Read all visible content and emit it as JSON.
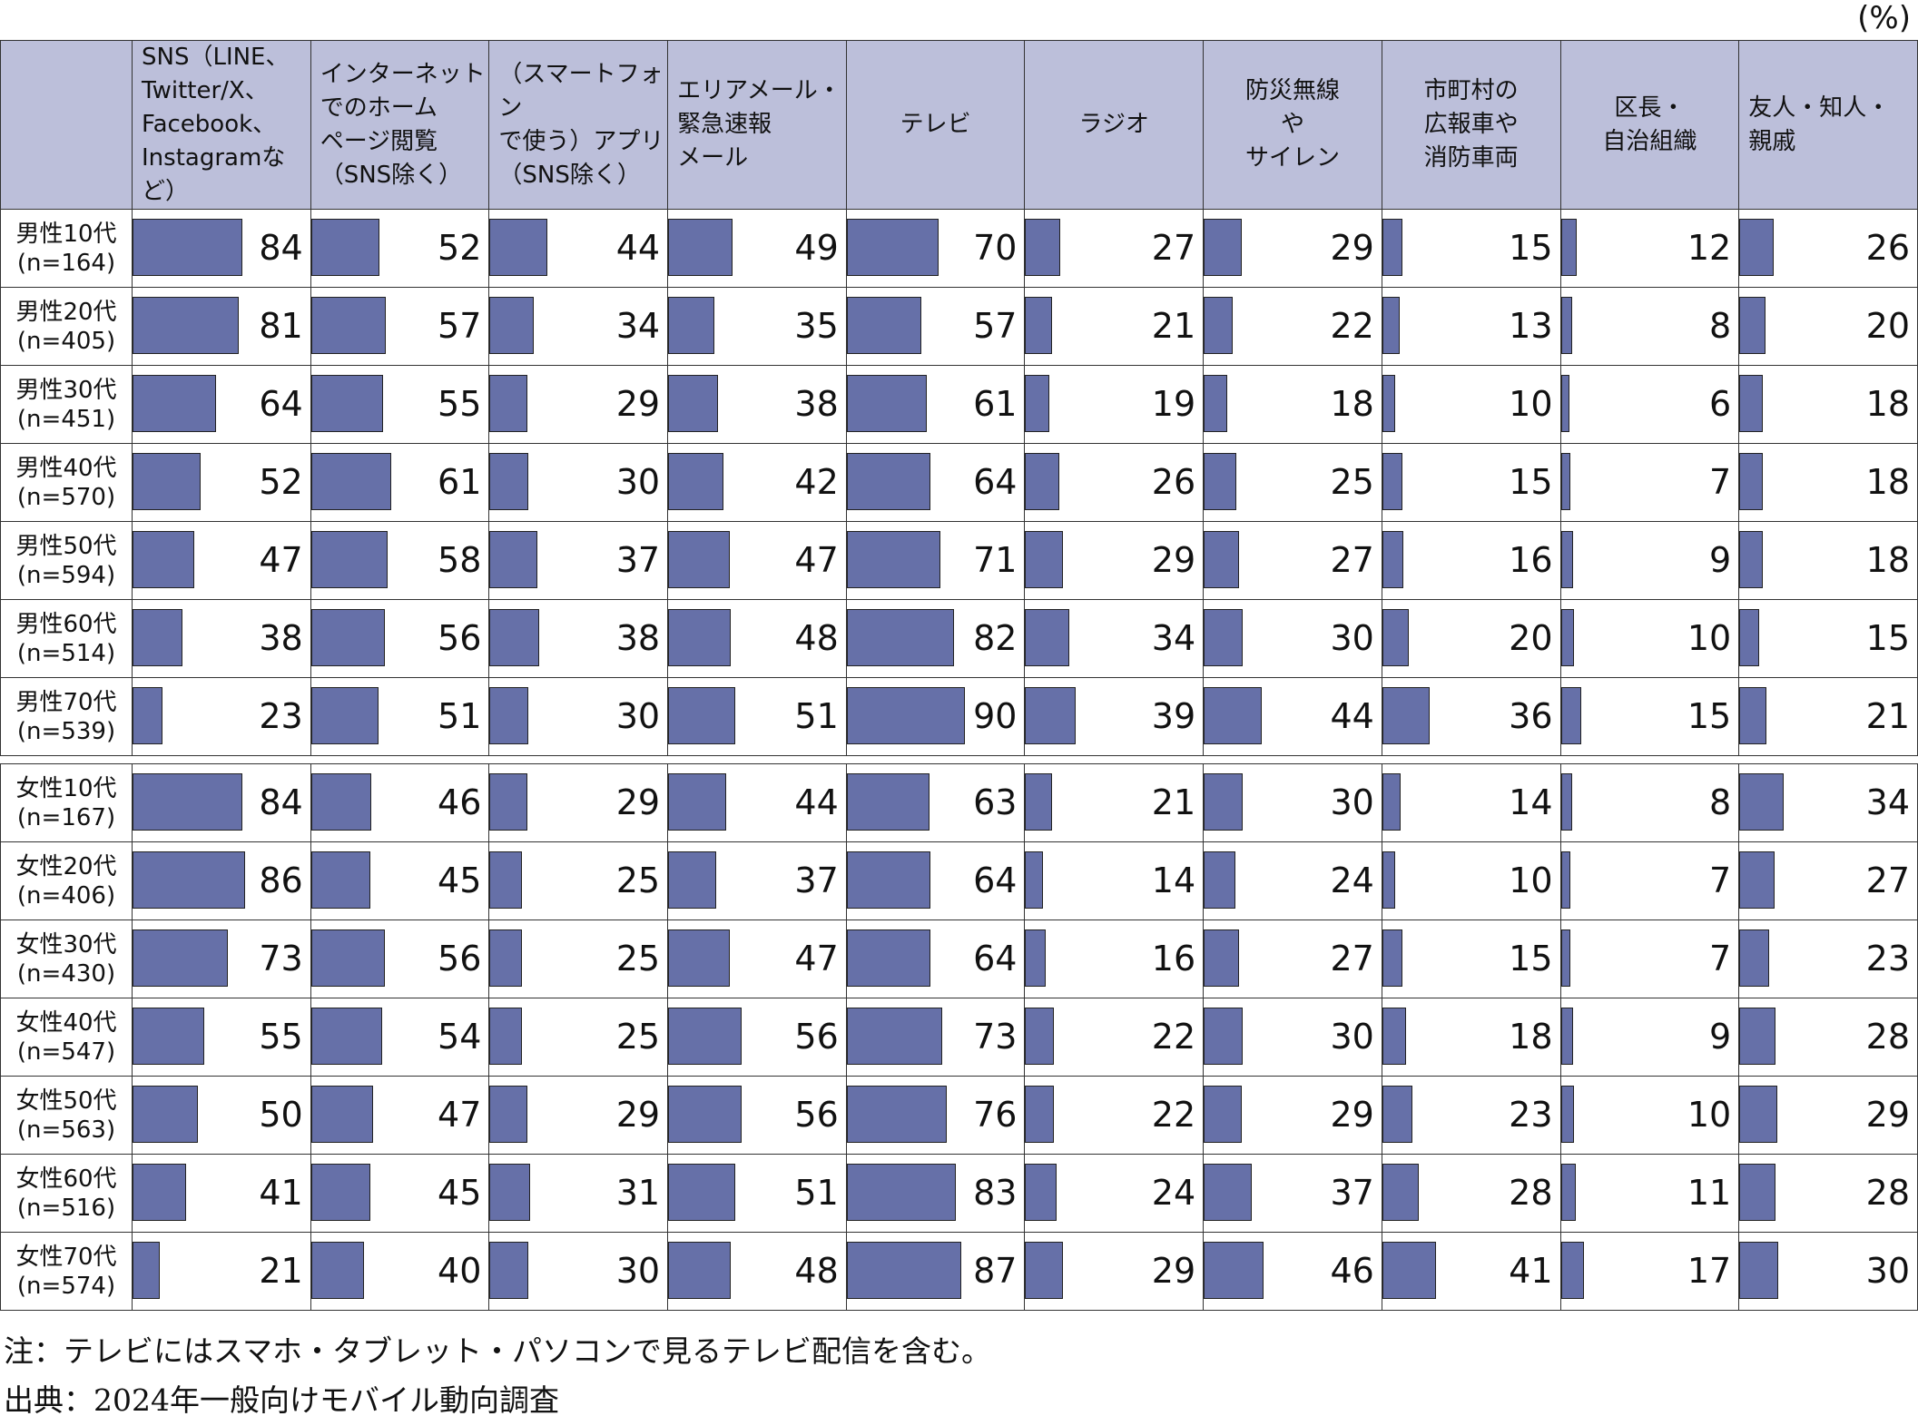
{
  "unit_label": "(%)",
  "chart_data": {
    "type": "table",
    "columns": [
      "SNS（LINE、\nTwitter/X、\nFacebook、\nInstagramなど）",
      "インターネット\nでのホーム\nページ閲覧\n（SNS除く）",
      "（スマートフォン\nで使う）アプリ\n（SNS除く）",
      "エリアメール・\n緊急速報\nメール",
      "テレビ",
      "ラジオ",
      "防災無線\nや\nサイレン",
      "市町村の\n広報車や\n消防車両",
      "区長・\n自治組織",
      "友人・知人・\n親戚"
    ],
    "centered_columns": [
      4,
      5,
      6,
      7,
      8
    ],
    "groups": [
      {
        "rows": [
          {
            "label": "男性10代",
            "n": "(n=164)",
            "values": [
              84,
              52,
              44,
              49,
              70,
              27,
              29,
              15,
              12,
              26
            ]
          },
          {
            "label": "男性20代",
            "n": "(n=405)",
            "values": [
              81,
              57,
              34,
              35,
              57,
              21,
              22,
              13,
              8,
              20
            ]
          },
          {
            "label": "男性30代",
            "n": "(n=451)",
            "values": [
              64,
              55,
              29,
              38,
              61,
              19,
              18,
              10,
              6,
              18
            ]
          },
          {
            "label": "男性40代",
            "n": "(n=570)",
            "values": [
              52,
              61,
              30,
              42,
              64,
              26,
              25,
              15,
              7,
              18
            ]
          },
          {
            "label": "男性50代",
            "n": "(n=594)",
            "values": [
              47,
              58,
              37,
              47,
              71,
              29,
              27,
              16,
              9,
              18
            ]
          },
          {
            "label": "男性60代",
            "n": "(n=514)",
            "values": [
              38,
              56,
              38,
              48,
              82,
              34,
              30,
              20,
              10,
              15
            ]
          },
          {
            "label": "男性70代",
            "n": "(n=539)",
            "values": [
              23,
              51,
              30,
              51,
              90,
              39,
              44,
              36,
              15,
              21
            ]
          }
        ]
      },
      {
        "rows": [
          {
            "label": "女性10代",
            "n": "(n=167)",
            "values": [
              84,
              46,
              29,
              44,
              63,
              21,
              30,
              14,
              8,
              34
            ]
          },
          {
            "label": "女性20代",
            "n": "(n=406)",
            "values": [
              86,
              45,
              25,
              37,
              64,
              14,
              24,
              10,
              7,
              27
            ]
          },
          {
            "label": "女性30代",
            "n": "(n=430)",
            "values": [
              73,
              56,
              25,
              47,
              64,
              16,
              27,
              15,
              7,
              23
            ]
          },
          {
            "label": "女性40代",
            "n": "(n=547)",
            "values": [
              55,
              54,
              25,
              56,
              73,
              22,
              30,
              18,
              9,
              28
            ]
          },
          {
            "label": "女性50代",
            "n": "(n=563)",
            "values": [
              50,
              47,
              29,
              56,
              76,
              22,
              29,
              23,
              10,
              29
            ]
          },
          {
            "label": "女性60代",
            "n": "(n=516)",
            "values": [
              41,
              45,
              31,
              51,
              83,
              24,
              37,
              28,
              11,
              28
            ]
          },
          {
            "label": "女性70代",
            "n": "(n=574)",
            "values": [
              21,
              40,
              30,
              48,
              87,
              29,
              46,
              41,
              17,
              30
            ]
          }
        ]
      }
    ],
    "bar_max": 100,
    "bar_color": "#6670a8",
    "header_color": "#bcbfda"
  },
  "notes": {
    "note": "注：テレビにはスマホ・タブレット・パソコンで見るテレビ配信を含む。",
    "source": "出典：2024年一般向けモバイル動向調査"
  }
}
